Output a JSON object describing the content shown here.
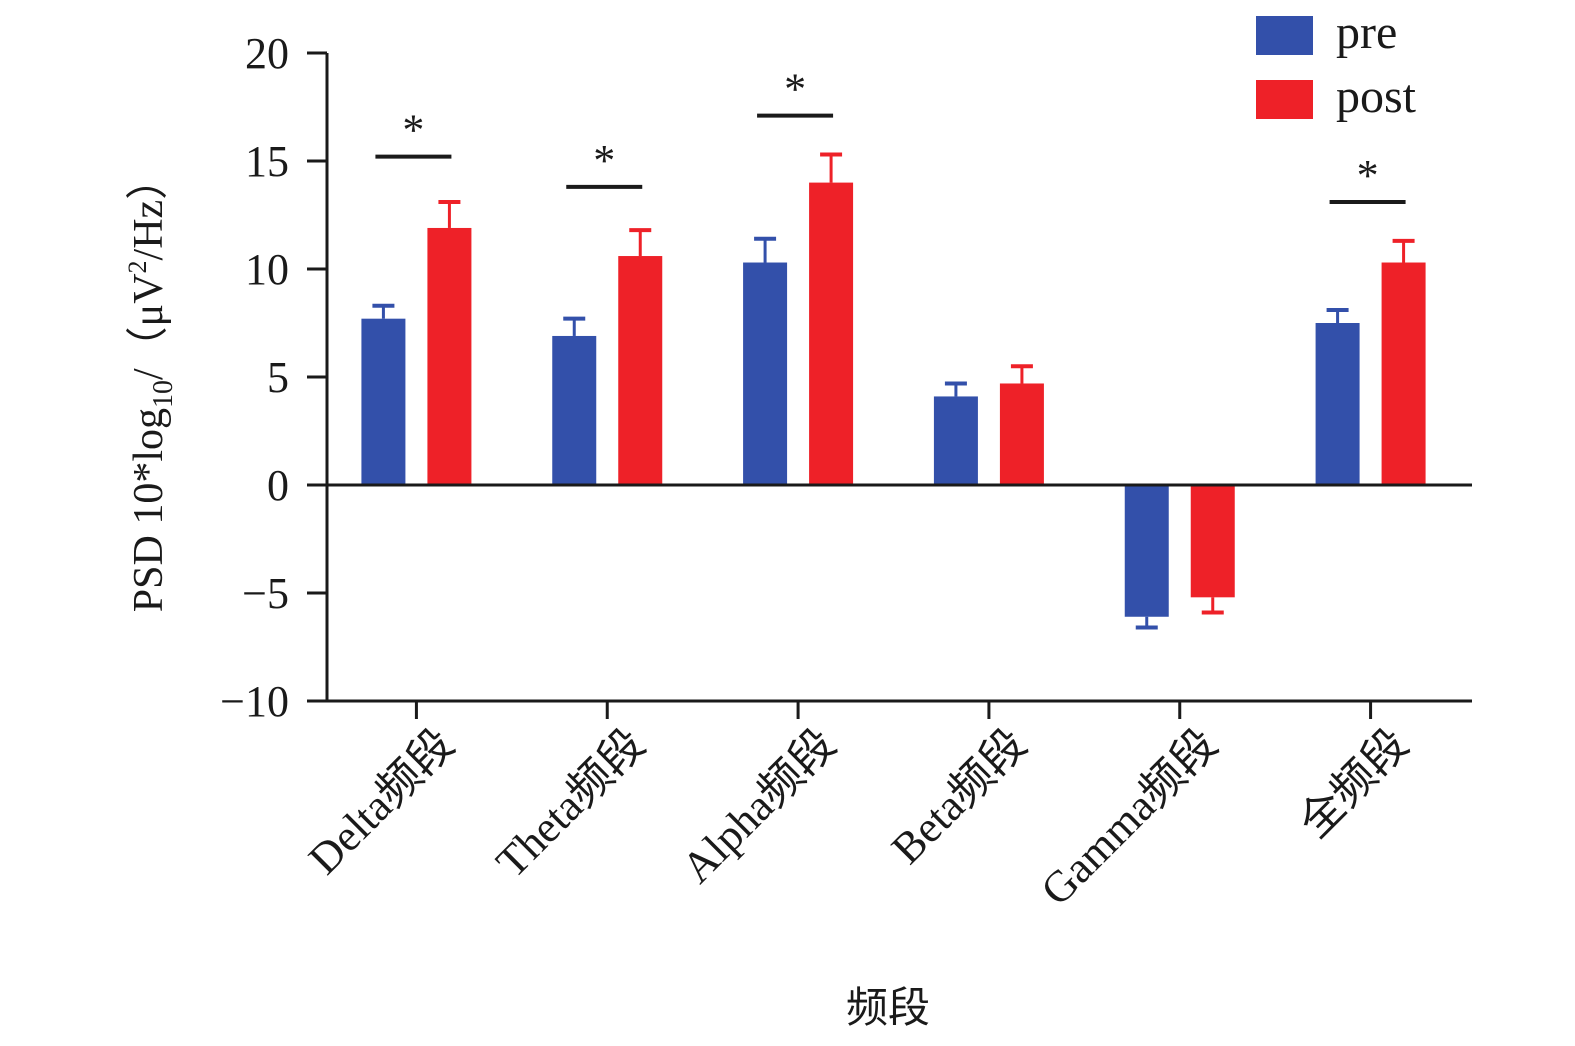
{
  "chart_data": {
    "type": "bar",
    "title": "",
    "xlabel": "频段",
    "ylabel": "PSD 10*log",
    "ylabel_sub": "10",
    "ylabel_rest": "/（μV",
    "ylabel_sup": "2",
    "ylabel_end": "/Hz）",
    "ylim": [
      -10,
      20
    ],
    "yticks": [
      20,
      15,
      10,
      5,
      0,
      -5,
      -10
    ],
    "ytick_labels": [
      "20",
      "15",
      "10",
      "5",
      "0",
      "−5",
      "−10"
    ],
    "categories": [
      "Delta频段",
      "Theta频段",
      "Alpha频段",
      "Beta频段",
      "Gamma频段",
      "全频段"
    ],
    "series": [
      {
        "name": "pre",
        "color": "#3350aa",
        "values": [
          7.7,
          6.9,
          10.3,
          4.1,
          -6.1,
          7.5
        ],
        "errors": [
          0.6,
          0.8,
          1.1,
          0.6,
          0.5,
          0.6
        ]
      },
      {
        "name": "post",
        "color": "#ee2128",
        "values": [
          11.9,
          10.6,
          14.0,
          4.7,
          -5.2,
          10.3
        ],
        "errors": [
          1.2,
          1.2,
          1.3,
          0.8,
          0.7,
          1.0
        ]
      }
    ],
    "significance": [
      {
        "category_index": 0,
        "label": "*",
        "level": 15.2
      },
      {
        "category_index": 1,
        "label": "*",
        "level": 13.8
      },
      {
        "category_index": 2,
        "label": "*",
        "level": 17.1
      },
      {
        "category_index": 5,
        "label": "*",
        "level": 13.1
      }
    ],
    "legend_position": "top-right",
    "grid": false
  }
}
